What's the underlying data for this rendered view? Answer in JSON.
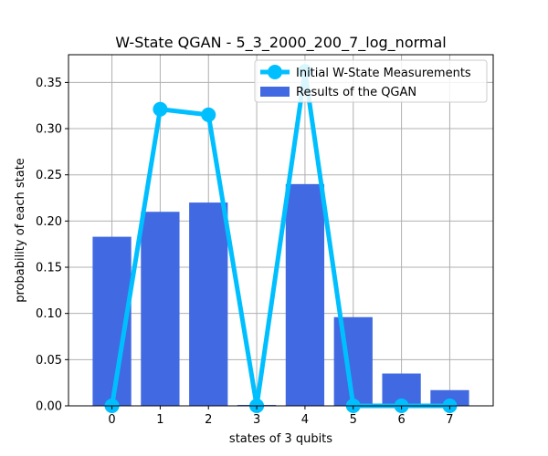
{
  "chart_data": {
    "type": "bar",
    "title": "W-State QGAN - 5_3_2000_200_7_log_normal",
    "xlabel": "states of 3 qubits",
    "ylabel": "probability of each state",
    "categories": [
      "0",
      "1",
      "2",
      "3",
      "4",
      "5",
      "6",
      "7"
    ],
    "xlim": [
      -0.9,
      7.9
    ],
    "ylim": [
      0,
      0.38
    ],
    "yticks": [
      "0.00",
      "0.05",
      "0.10",
      "0.15",
      "0.20",
      "0.25",
      "0.30",
      "0.35"
    ],
    "grid": true,
    "legend_position": "upper right",
    "series": [
      {
        "name": "Results of the QGAN",
        "type": "bar",
        "color": "#4169e1",
        "values": [
          0.183,
          0.21,
          0.22,
          0.001,
          0.24,
          0.096,
          0.035,
          0.017
        ]
      },
      {
        "name": "Initial W-State Measurements",
        "type": "line",
        "color": "#00bfff",
        "values": [
          0.0,
          0.321,
          0.315,
          0.0,
          0.362,
          0.0,
          0.0,
          0.0
        ]
      }
    ]
  }
}
